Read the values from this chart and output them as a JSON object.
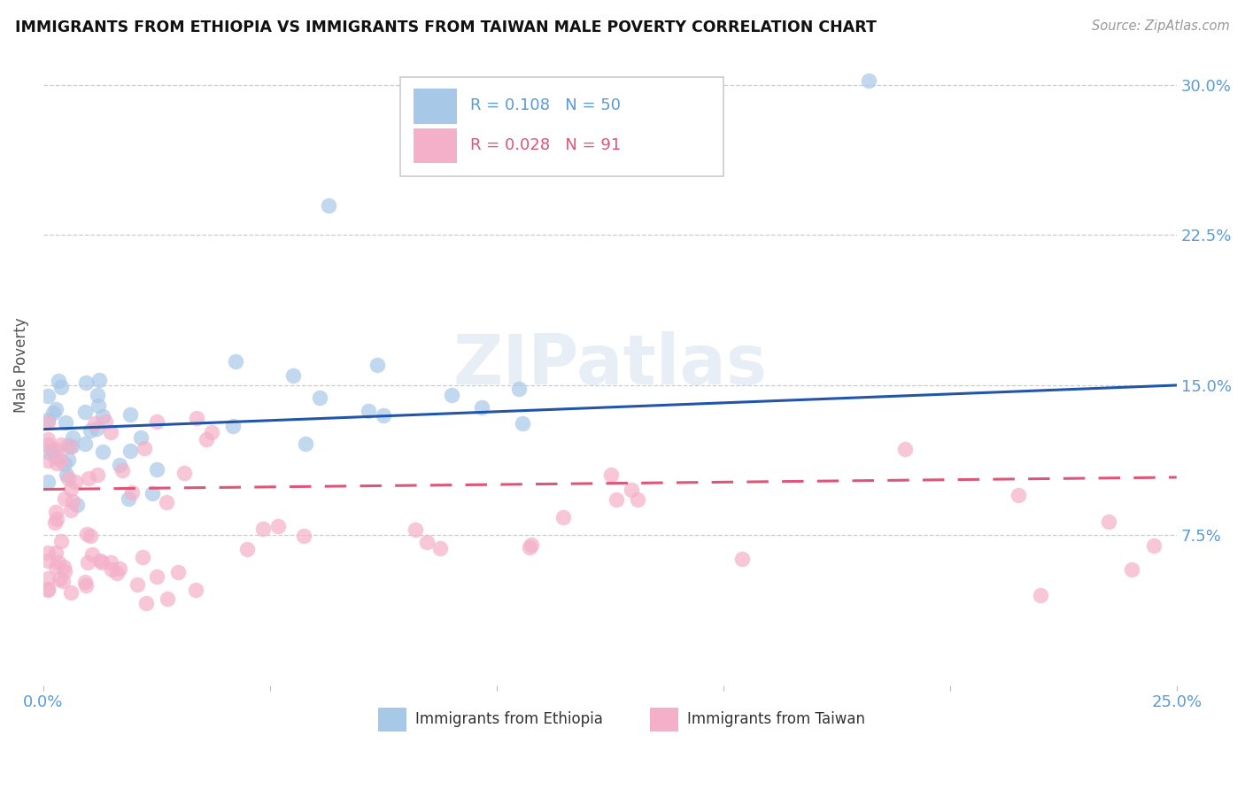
{
  "title": "IMMIGRANTS FROM ETHIOPIA VS IMMIGRANTS FROM TAIWAN MALE POVERTY CORRELATION CHART",
  "source": "Source: ZipAtlas.com",
  "ylabel": "Male Poverty",
  "xlim": [
    0.0,
    0.25
  ],
  "ylim": [
    0.0,
    0.32
  ],
  "xtick_positions": [
    0.0,
    0.05,
    0.1,
    0.15,
    0.2,
    0.25
  ],
  "xtick_labels": [
    "0.0%",
    "",
    "",
    "",
    "",
    "25.0%"
  ],
  "ytick_positions": [
    0.075,
    0.15,
    0.225,
    0.3
  ],
  "ytick_labels": [
    "7.5%",
    "15.0%",
    "22.5%",
    "30.0%"
  ],
  "legend_ethiopia_R": "0.108",
  "legend_ethiopia_N": "50",
  "legend_taiwan_R": "0.028",
  "legend_taiwan_N": "91",
  "color_ethiopia": "#a8c8e8",
  "color_taiwan": "#f4b0c8",
  "line_color_ethiopia": "#2255aa",
  "line_color_taiwan": "#dd5577",
  "eth_line_start_y": 0.128,
  "eth_line_end_y": 0.15,
  "tai_line_start_y": 0.098,
  "tai_line_end_y": 0.104
}
